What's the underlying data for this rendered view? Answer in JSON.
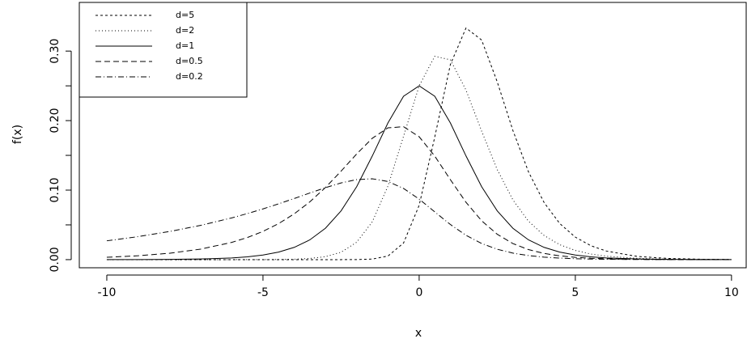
{
  "chart_data": {
    "type": "line",
    "x_label": "x",
    "y_label": "f(x)",
    "x": [
      -10,
      -9,
      -8,
      -7,
      -6,
      -5.5,
      -5,
      -4.5,
      -4,
      -3.5,
      -3,
      -2.5,
      -2,
      -1.5,
      -1,
      -0.5,
      0,
      0.5,
      1,
      1.5,
      2,
      2.5,
      3,
      3.5,
      4,
      4.5,
      5,
      5.5,
      6,
      7,
      8,
      9,
      10
    ],
    "series": [
      {
        "name": "d=5",
        "color": "#000000",
        "dash": "3,3",
        "values": [
          0,
          0,
          0,
          0,
          0,
          0,
          0,
          0,
          0,
          0,
          1e-06,
          1.16e-05,
          0.000106,
          0.000826,
          0.005143,
          0.023873,
          0.078125,
          0.176395,
          0.280796,
          0.333189,
          0.315964,
          0.255663,
          0.185987,
          0.126304,
          0.082131,
          0.051981,
          0.032359,
          0.019942,
          0.012213,
          0.004533,
          0.001674,
          0.000617,
          0.000227
        ]
      },
      {
        "name": "d=2",
        "color": "#000000",
        "dash": "1,3",
        "values": [
          0,
          0,
          0,
          1.7e-06,
          1.22e-05,
          3.3e-05,
          8.9e-05,
          0.000239,
          0.000635,
          0.001668,
          0.004285,
          0.010636,
          0.025031,
          0.054416,
          0.105754,
          0.177448,
          0.25,
          0.292561,
          0.28747,
          0.243876,
          0.184957,
          0.129572,
          0.086069,
          0.055238,
          0.034691,
          0.021493,
          0.013207,
          0.008075,
          0.004922,
          0.001818,
          0.00067,
          0.000247,
          9.1e-05
        ]
      },
      {
        "name": "d=1",
        "color": "#000000",
        "dash": "none",
        "values": [
          4.54e-05,
          0.000123,
          0.000335,
          0.00091,
          0.002467,
          0.004054,
          0.006648,
          0.010866,
          0.017663,
          0.028453,
          0.045177,
          0.070104,
          0.104994,
          0.149146,
          0.196612,
          0.235004,
          0.25,
          0.235004,
          0.196612,
          0.149146,
          0.104994,
          0.070104,
          0.045177,
          0.028453,
          0.017663,
          0.010866,
          0.006648,
          0.004054,
          0.002467,
          0.00091,
          0.000335,
          0.000123,
          4.54e-05
        ]
      },
      {
        "name": "d=0.5",
        "color": "#000000",
        "dash": "7,4",
        "values": [
          0.003369,
          0.005554,
          0.009153,
          0.015078,
          0.024803,
          0.031769,
          0.040632,
          0.051834,
          0.06585,
          0.083094,
          0.103723,
          0.127265,
          0.152051,
          0.174599,
          0.189562,
          0.191233,
          0.176777,
          0.148932,
          0.114975,
          0.082475,
          0.055936,
          0.036462,
          0.023144,
          0.01444,
          0.008912,
          0.005463,
          0.003335,
          0.002031,
          0.001235,
          0.000455,
          0.000168,
          6.2e-05,
          2.3e-05
        ]
      },
      {
        "name": "d=0.2",
        "color": "#000000",
        "dash": "7,3,1,3",
        "values": [
          0.027066,
          0.033055,
          0.040363,
          0.049266,
          0.06006,
          0.06625,
          0.072985,
          0.080244,
          0.087929,
          0.095835,
          0.103547,
          0.110351,
          0.115126,
          0.116355,
          0.112441,
          0.102455,
          0.087055,
          0.068677,
          0.050522,
          0.035045,
          0.023243,
          0.014934,
          0.009393,
          0.005828,
          0.003584,
          0.002193,
          0.001337,
          0.000813,
          0.000494,
          0.000182,
          6.7e-05,
          2.5e-05,
          9e-06
        ]
      }
    ],
    "xlim": [
      -10.88,
      10.47
    ],
    "ylim": [
      -0.0117,
      0.37
    ],
    "xticks": [
      -10,
      -5,
      0,
      5,
      10
    ],
    "yticks": [
      {
        "value": 0,
        "label": "0.00"
      },
      {
        "value": 0.1,
        "label": "0.10"
      },
      {
        "value": 0.2,
        "label": "0.20"
      },
      {
        "value": 0.3,
        "label": "0.30"
      }
    ],
    "yminor_ticks": [
      0.05,
      0.15,
      0.25
    ],
    "legend": "top-left",
    "grid": false
  }
}
